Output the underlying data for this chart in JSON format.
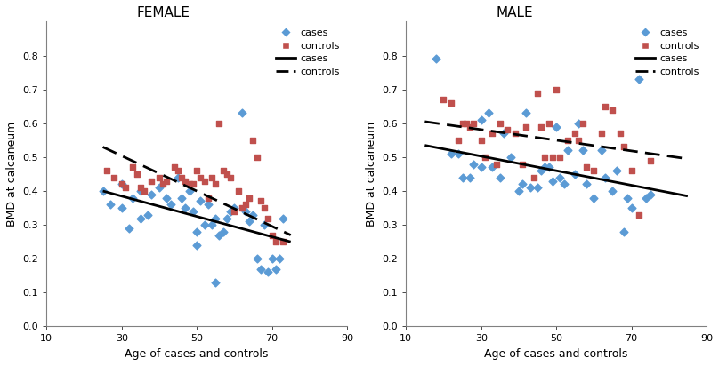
{
  "female_cases_x": [
    25,
    27,
    30,
    30,
    32,
    33,
    35,
    35,
    37,
    38,
    40,
    42,
    43,
    45,
    46,
    47,
    48,
    49,
    50,
    50,
    51,
    52,
    53,
    54,
    55,
    55,
    56,
    57,
    58,
    59,
    60,
    62,
    63,
    64,
    65,
    66,
    67,
    68,
    69,
    70,
    71,
    72,
    73
  ],
  "female_cases_y": [
    0.4,
    0.36,
    0.35,
    0.42,
    0.29,
    0.38,
    0.32,
    0.4,
    0.33,
    0.39,
    0.41,
    0.38,
    0.36,
    0.44,
    0.38,
    0.35,
    0.4,
    0.34,
    0.28,
    0.24,
    0.37,
    0.3,
    0.36,
    0.3,
    0.32,
    0.13,
    0.27,
    0.28,
    0.32,
    0.34,
    0.35,
    0.63,
    0.34,
    0.31,
    0.33,
    0.2,
    0.17,
    0.3,
    0.16,
    0.2,
    0.17,
    0.2,
    0.32
  ],
  "female_controls_x": [
    26,
    28,
    30,
    31,
    33,
    34,
    35,
    36,
    38,
    40,
    41,
    42,
    44,
    45,
    46,
    47,
    48,
    49,
    50,
    51,
    52,
    53,
    54,
    55,
    56,
    57,
    58,
    59,
    60,
    61,
    62,
    63,
    64,
    65,
    66,
    67,
    68,
    69,
    70,
    71,
    73
  ],
  "female_controls_y": [
    0.46,
    0.44,
    0.42,
    0.41,
    0.47,
    0.45,
    0.41,
    0.4,
    0.43,
    0.44,
    0.42,
    0.43,
    0.47,
    0.46,
    0.44,
    0.43,
    0.42,
    0.42,
    0.46,
    0.44,
    0.43,
    0.38,
    0.44,
    0.42,
    0.6,
    0.46,
    0.45,
    0.44,
    0.34,
    0.4,
    0.35,
    0.36,
    0.38,
    0.55,
    0.5,
    0.37,
    0.35,
    0.32,
    0.27,
    0.25,
    0.25
  ],
  "female_cases_line": [
    25,
    75,
    0.4,
    0.25
  ],
  "female_controls_line": [
    25,
    75,
    0.53,
    0.27
  ],
  "male_cases_x": [
    18,
    22,
    24,
    25,
    27,
    28,
    30,
    30,
    32,
    33,
    35,
    36,
    38,
    40,
    41,
    42,
    43,
    45,
    46,
    47,
    48,
    49,
    50,
    51,
    52,
    53,
    55,
    56,
    57,
    58,
    60,
    62,
    63,
    65,
    66,
    68,
    69,
    70,
    72,
    74,
    75
  ],
  "male_cases_y": [
    0.79,
    0.51,
    0.51,
    0.44,
    0.44,
    0.48,
    0.61,
    0.47,
    0.63,
    0.47,
    0.44,
    0.57,
    0.5,
    0.4,
    0.42,
    0.63,
    0.41,
    0.41,
    0.46,
    0.47,
    0.47,
    0.43,
    0.59,
    0.44,
    0.42,
    0.52,
    0.45,
    0.6,
    0.52,
    0.42,
    0.38,
    0.52,
    0.44,
    0.4,
    0.46,
    0.28,
    0.38,
    0.35,
    0.73,
    0.38,
    0.39
  ],
  "male_controls_x": [
    20,
    22,
    24,
    25,
    26,
    27,
    28,
    30,
    31,
    33,
    34,
    35,
    37,
    39,
    41,
    42,
    44,
    45,
    46,
    47,
    48,
    49,
    50,
    51,
    53,
    55,
    56,
    57,
    58,
    60,
    62,
    63,
    65,
    67,
    68,
    70,
    72,
    75
  ],
  "male_controls_y": [
    0.67,
    0.66,
    0.55,
    0.6,
    0.6,
    0.59,
    0.6,
    0.55,
    0.5,
    0.57,
    0.48,
    0.6,
    0.58,
    0.57,
    0.48,
    0.59,
    0.44,
    0.69,
    0.59,
    0.5,
    0.6,
    0.5,
    0.7,
    0.5,
    0.55,
    0.57,
    0.55,
    0.6,
    0.47,
    0.46,
    0.57,
    0.65,
    0.64,
    0.57,
    0.53,
    0.46,
    0.33,
    0.49
  ],
  "male_cases_line": [
    15,
    85,
    0.535,
    0.385
  ],
  "male_controls_line": [
    15,
    85,
    0.605,
    0.495
  ],
  "cases_color": "#5B9BD5",
  "controls_color": "#C0504D",
  "line_color": "#000000",
  "xlabel": "Age of cases and controls",
  "ylabel": "BMD at calcaneum",
  "xlim": [
    10,
    90
  ],
  "ylim": [
    0,
    0.8
  ],
  "yticks": [
    0,
    0.1,
    0.2,
    0.3,
    0.4,
    0.5,
    0.6,
    0.7,
    0.8
  ],
  "xticks": [
    10,
    30,
    50,
    70,
    90
  ],
  "female_title": "FEMALE",
  "male_title": "MALE"
}
